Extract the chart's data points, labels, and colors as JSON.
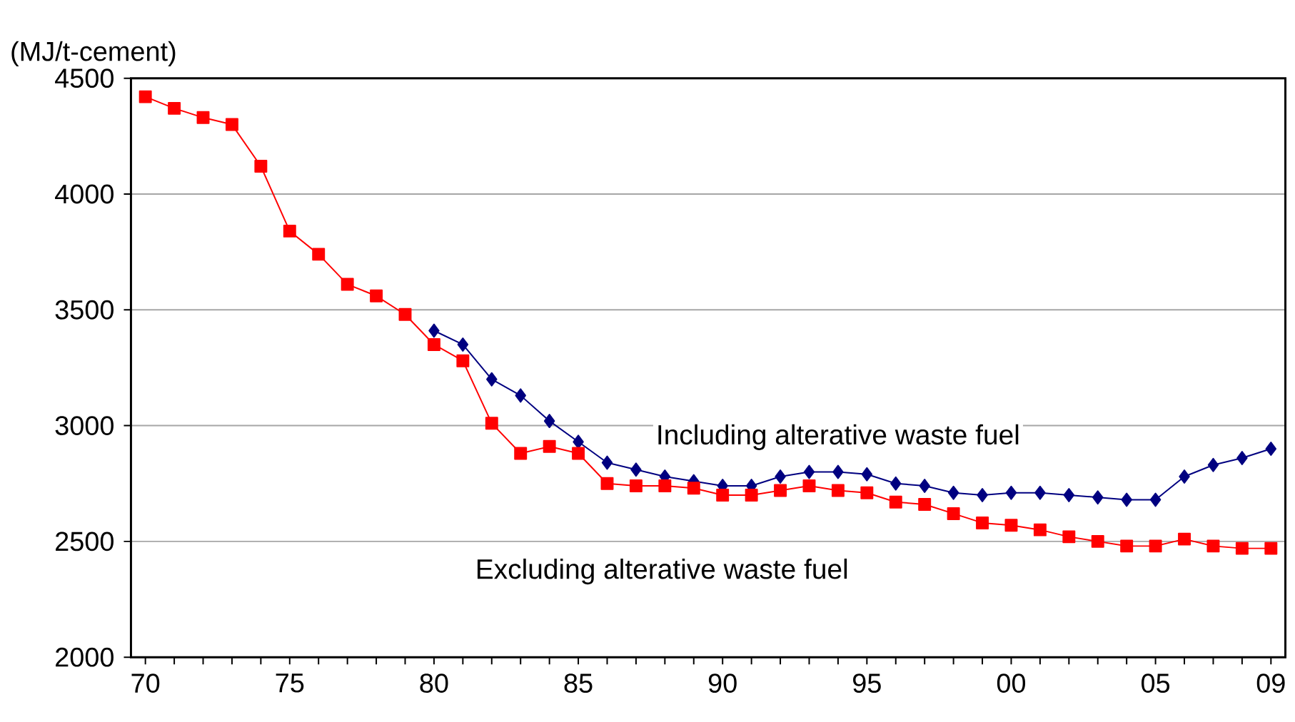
{
  "chart_data": {
    "type": "line",
    "ylabel": "(MJ/t-cement)",
    "categories": [
      "70",
      null,
      null,
      null,
      null,
      "75",
      null,
      null,
      null,
      null,
      "80",
      null,
      null,
      null,
      null,
      "85",
      null,
      null,
      null,
      null,
      "90",
      null,
      null,
      null,
      null,
      "95",
      null,
      null,
      null,
      null,
      "00",
      null,
      null,
      null,
      null,
      "05",
      null,
      null,
      null,
      "09"
    ],
    "series": [
      {
        "name": "Including alterative waste fuel",
        "color": "#000080",
        "marker": "diamond",
        "values": [
          null,
          null,
          null,
          null,
          null,
          null,
          null,
          null,
          null,
          null,
          3410,
          3350,
          3200,
          3130,
          3020,
          2930,
          2840,
          2810,
          2780,
          2760,
          2740,
          2740,
          2780,
          2800,
          2800,
          2790,
          2750,
          2740,
          2710,
          2700,
          2710,
          2710,
          2700,
          2690,
          2680,
          2680,
          2780,
          2830,
          2860,
          2900
        ]
      },
      {
        "name": "Excluding alterative waste fuel",
        "color": "#ff0000",
        "marker": "square",
        "values": [
          4420,
          4370,
          4330,
          4300,
          4120,
          3840,
          3740,
          3610,
          3560,
          3480,
          3350,
          3280,
          3010,
          2880,
          2910,
          2880,
          2750,
          2740,
          2740,
          2730,
          2700,
          2700,
          2720,
          2740,
          2720,
          2710,
          2670,
          2660,
          2620,
          2580,
          2570,
          2550,
          2520,
          2500,
          2480,
          2480,
          2510,
          2480,
          2470,
          2470
        ]
      }
    ],
    "ylim": [
      2000,
      4500
    ],
    "yticks": [
      2000,
      2500,
      3000,
      3500,
      4000,
      4500
    ],
    "grid": "y",
    "legend": false,
    "line_style": "solid"
  }
}
